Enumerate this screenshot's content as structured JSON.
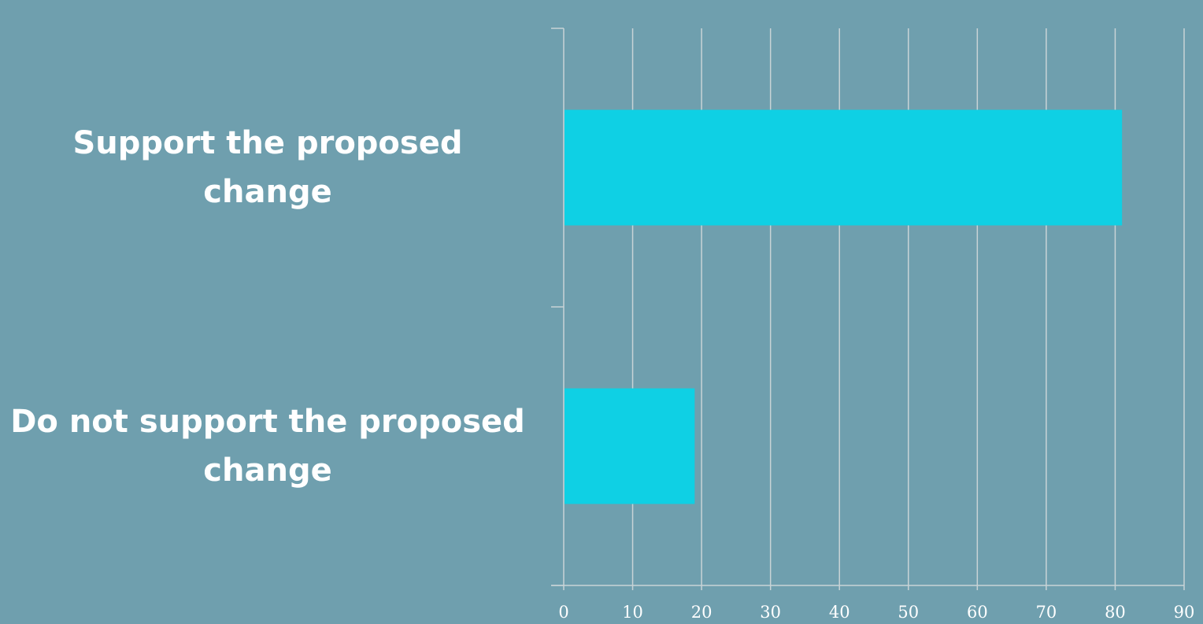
{
  "chart_data": {
    "type": "bar",
    "orientation": "horizontal",
    "categories": [
      "Support the proposed change",
      "Do not support the proposed change"
    ],
    "values": [
      81,
      19
    ],
    "xlim": [
      0,
      90
    ],
    "xticks": [
      0,
      10,
      20,
      30,
      40,
      50,
      60,
      70,
      80,
      90
    ],
    "tick_labels": [
      "0",
      "10",
      "20",
      "30",
      "40",
      "50",
      "60",
      "70",
      "80",
      "90"
    ],
    "grid": "vertical",
    "legend": "none",
    "title": "",
    "xlabel": "",
    "ylabel": "",
    "colors": {
      "background": "#6f9fae",
      "bar": "#0fd0e4",
      "grid": "#c8d3d6",
      "text": "#ffffff"
    }
  }
}
